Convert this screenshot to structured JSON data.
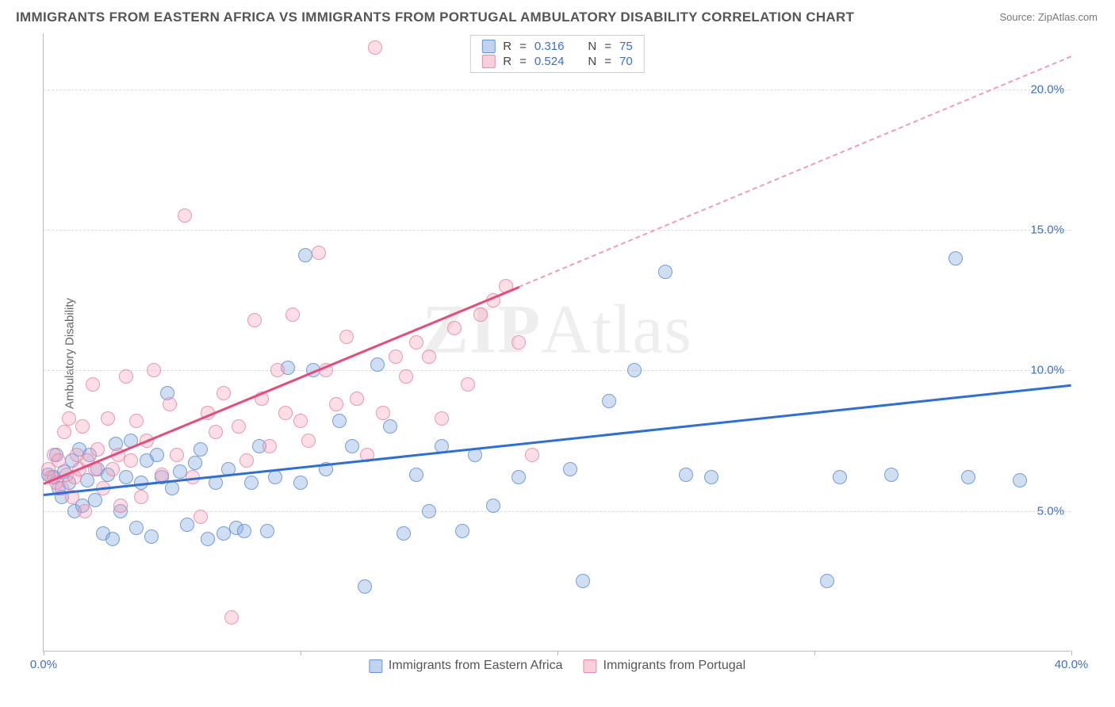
{
  "title": "IMMIGRANTS FROM EASTERN AFRICA VS IMMIGRANTS FROM PORTUGAL AMBULATORY DISABILITY CORRELATION CHART",
  "source": "Source: ZipAtlas.com",
  "watermark_a": "ZIP",
  "watermark_b": "Atlas",
  "chart": {
    "type": "scatter",
    "xlim": [
      0,
      40
    ],
    "ylim": [
      0,
      22
    ],
    "y_label": "Ambulatory Disability",
    "y_ticks": [
      5,
      10,
      15,
      20
    ],
    "y_tick_labels": [
      "5.0%",
      "10.0%",
      "15.0%",
      "20.0%"
    ],
    "x_ticks": [
      0,
      10,
      20,
      30,
      40
    ],
    "x_tick_labels_shown": {
      "0": "0.0%",
      "40": "40.0%"
    },
    "grid_color": "#dddddd",
    "axis_color": "#bbbbbb",
    "tick_label_color": "#3b6fc9",
    "background_color": "#ffffff",
    "marker_radius": 9,
    "series": [
      {
        "name": "Immigrants from Eastern Africa",
        "color_fill": "rgba(131,169,222,0.38)",
        "color_stroke": "rgba(80,130,210,0.7)",
        "r_value": "0.316",
        "n_value": "75",
        "trend": {
          "x1": 0,
          "y1": 5.6,
          "x2": 40,
          "y2": 9.5,
          "color": "#2e6fd6",
          "width": 3
        },
        "points": [
          [
            0.2,
            6.3
          ],
          [
            0.4,
            6.2
          ],
          [
            0.5,
            7.0
          ],
          [
            0.6,
            5.8
          ],
          [
            0.7,
            5.5
          ],
          [
            0.8,
            6.4
          ],
          [
            1.0,
            6.0
          ],
          [
            1.1,
            6.8
          ],
          [
            1.2,
            5.0
          ],
          [
            1.4,
            7.2
          ],
          [
            1.5,
            5.2
          ],
          [
            1.7,
            6.1
          ],
          [
            1.8,
            7.0
          ],
          [
            2.0,
            5.4
          ],
          [
            2.1,
            6.5
          ],
          [
            2.3,
            4.2
          ],
          [
            2.5,
            6.3
          ],
          [
            2.7,
            4.0
          ],
          [
            2.8,
            7.4
          ],
          [
            3.0,
            5.0
          ],
          [
            3.2,
            6.2
          ],
          [
            3.4,
            7.5
          ],
          [
            3.6,
            4.4
          ],
          [
            3.8,
            6.0
          ],
          [
            4.0,
            6.8
          ],
          [
            4.2,
            4.1
          ],
          [
            4.4,
            7.0
          ],
          [
            4.6,
            6.2
          ],
          [
            4.8,
            9.2
          ],
          [
            5.0,
            5.8
          ],
          [
            5.3,
            6.4
          ],
          [
            5.6,
            4.5
          ],
          [
            5.9,
            6.7
          ],
          [
            6.1,
            7.2
          ],
          [
            6.4,
            4.0
          ],
          [
            6.7,
            6.0
          ],
          [
            7.0,
            4.2
          ],
          [
            7.2,
            6.5
          ],
          [
            7.5,
            4.4
          ],
          [
            7.8,
            4.3
          ],
          [
            8.1,
            6.0
          ],
          [
            8.4,
            7.3
          ],
          [
            8.7,
            4.3
          ],
          [
            9.0,
            6.2
          ],
          [
            9.5,
            10.1
          ],
          [
            10.0,
            6.0
          ],
          [
            10.2,
            14.1
          ],
          [
            10.5,
            10.0
          ],
          [
            11.0,
            6.5
          ],
          [
            11.5,
            8.2
          ],
          [
            12.0,
            7.3
          ],
          [
            12.5,
            2.3
          ],
          [
            13.0,
            10.2
          ],
          [
            13.5,
            8.0
          ],
          [
            14.0,
            4.2
          ],
          [
            14.5,
            6.3
          ],
          [
            15.0,
            5.0
          ],
          [
            15.5,
            7.3
          ],
          [
            16.3,
            4.3
          ],
          [
            16.8,
            7.0
          ],
          [
            17.5,
            5.2
          ],
          [
            18.5,
            6.2
          ],
          [
            20.5,
            6.5
          ],
          [
            21.0,
            2.5
          ],
          [
            22.0,
            8.9
          ],
          [
            23.0,
            10.0
          ],
          [
            24.2,
            13.5
          ],
          [
            25.0,
            6.3
          ],
          [
            26.0,
            6.2
          ],
          [
            30.5,
            2.5
          ],
          [
            31.0,
            6.2
          ],
          [
            33.0,
            6.3
          ],
          [
            35.5,
            14.0
          ],
          [
            36.0,
            6.2
          ],
          [
            38.0,
            6.1
          ]
        ]
      },
      {
        "name": "Immigrants from Portugal",
        "color_fill": "rgba(245,160,185,0.35)",
        "color_stroke": "rgba(230,120,155,0.7)",
        "r_value": "0.524",
        "n_value": "70",
        "trend": {
          "x1": 0,
          "y1": 6.0,
          "x2": 18.5,
          "y2": 13.0,
          "color": "#e84a7a",
          "width": 2.5
        },
        "trend_dash": {
          "x1": 18.5,
          "y1": 13.0,
          "x2": 40,
          "y2": 21.2,
          "color": "rgba(232,74,122,0.55)"
        },
        "points": [
          [
            0.2,
            6.5
          ],
          [
            0.3,
            6.2
          ],
          [
            0.4,
            7.0
          ],
          [
            0.5,
            6.0
          ],
          [
            0.6,
            6.8
          ],
          [
            0.7,
            5.8
          ],
          [
            0.8,
            7.8
          ],
          [
            0.9,
            6.3
          ],
          [
            1.0,
            8.3
          ],
          [
            1.1,
            5.5
          ],
          [
            1.2,
            6.2
          ],
          [
            1.3,
            7.0
          ],
          [
            1.4,
            6.5
          ],
          [
            1.5,
            8.0
          ],
          [
            1.6,
            5.0
          ],
          [
            1.7,
            6.8
          ],
          [
            1.9,
            9.5
          ],
          [
            2.0,
            6.5
          ],
          [
            2.1,
            7.2
          ],
          [
            2.3,
            5.8
          ],
          [
            2.5,
            8.3
          ],
          [
            2.7,
            6.5
          ],
          [
            2.9,
            7.0
          ],
          [
            3.0,
            5.2
          ],
          [
            3.2,
            9.8
          ],
          [
            3.4,
            6.8
          ],
          [
            3.6,
            8.2
          ],
          [
            3.8,
            5.5
          ],
          [
            4.0,
            7.5
          ],
          [
            4.3,
            10.0
          ],
          [
            4.6,
            6.3
          ],
          [
            4.9,
            8.8
          ],
          [
            5.2,
            7.0
          ],
          [
            5.5,
            15.5
          ],
          [
            5.8,
            6.2
          ],
          [
            6.1,
            4.8
          ],
          [
            6.4,
            8.5
          ],
          [
            6.7,
            7.8
          ],
          [
            7.0,
            9.2
          ],
          [
            7.3,
            1.2
          ],
          [
            7.6,
            8.0
          ],
          [
            7.9,
            6.8
          ],
          [
            8.2,
            11.8
          ],
          [
            8.5,
            9.0
          ],
          [
            8.8,
            7.3
          ],
          [
            9.1,
            10.0
          ],
          [
            9.4,
            8.5
          ],
          [
            9.7,
            12.0
          ],
          [
            10.0,
            8.2
          ],
          [
            10.3,
            7.5
          ],
          [
            10.7,
            14.2
          ],
          [
            11.0,
            10.0
          ],
          [
            11.4,
            8.8
          ],
          [
            11.8,
            11.2
          ],
          [
            12.2,
            9.0
          ],
          [
            12.6,
            7.0
          ],
          [
            12.9,
            21.5
          ],
          [
            13.2,
            8.5
          ],
          [
            13.7,
            10.5
          ],
          [
            14.1,
            9.8
          ],
          [
            14.5,
            11.0
          ],
          [
            15.0,
            10.5
          ],
          [
            15.5,
            8.3
          ],
          [
            16.0,
            11.5
          ],
          [
            16.5,
            9.5
          ],
          [
            17.0,
            12.0
          ],
          [
            17.5,
            12.5
          ],
          [
            18.0,
            13.0
          ],
          [
            18.5,
            11.0
          ],
          [
            19.0,
            7.0
          ]
        ]
      }
    ],
    "legend_top": {
      "r_label": "R",
      "n_label": "N",
      "eq": "="
    },
    "legend_bottom_labels": [
      "Immigrants from Eastern Africa",
      "Immigrants from Portugal"
    ]
  }
}
